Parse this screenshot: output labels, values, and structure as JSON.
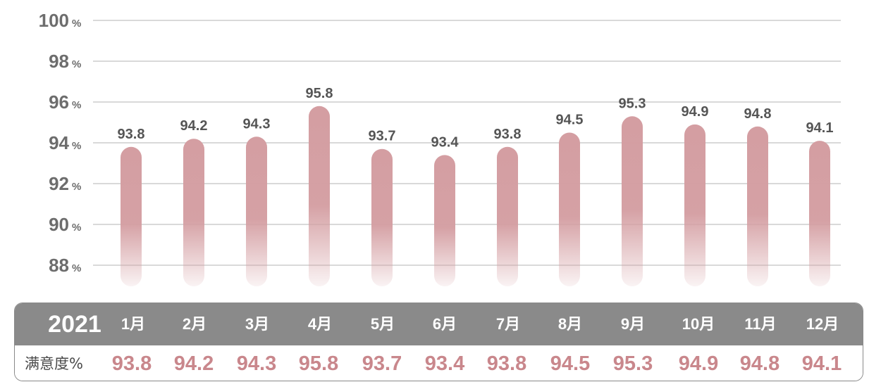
{
  "chart_data": {
    "type": "bar",
    "year": "2021",
    "categories": [
      "1月",
      "2月",
      "3月",
      "4月",
      "5月",
      "6月",
      "7月",
      "8月",
      "9月",
      "10月",
      "11月",
      "12月"
    ],
    "values": [
      93.8,
      94.2,
      94.3,
      95.8,
      93.7,
      93.4,
      93.8,
      94.5,
      95.3,
      94.9,
      94.8,
      94.1
    ],
    "value_labels": [
      "93.8",
      "94.2",
      "94.3",
      "95.8",
      "93.7",
      "93.4",
      "93.8",
      "94.5",
      "95.3",
      "94.9",
      "94.8",
      "94.1"
    ],
    "row_label": "满意度%",
    "yticks": [
      {
        "value": 100,
        "label": "100"
      },
      {
        "value": 98,
        "label": "98"
      },
      {
        "value": 96,
        "label": "96"
      },
      {
        "value": 94,
        "label": "94"
      },
      {
        "value": 92,
        "label": "92"
      },
      {
        "value": 90,
        "label": "90"
      },
      {
        "value": 88,
        "label": "88"
      }
    ],
    "ytick_unit": "%",
    "ylim": [
      87,
      100
    ],
    "grid": true,
    "colors": {
      "bar": "#d49ea2",
      "value_text": "#c9878c",
      "grid": "#d9d9d9",
      "table_header": "#8a8a8a"
    }
  }
}
